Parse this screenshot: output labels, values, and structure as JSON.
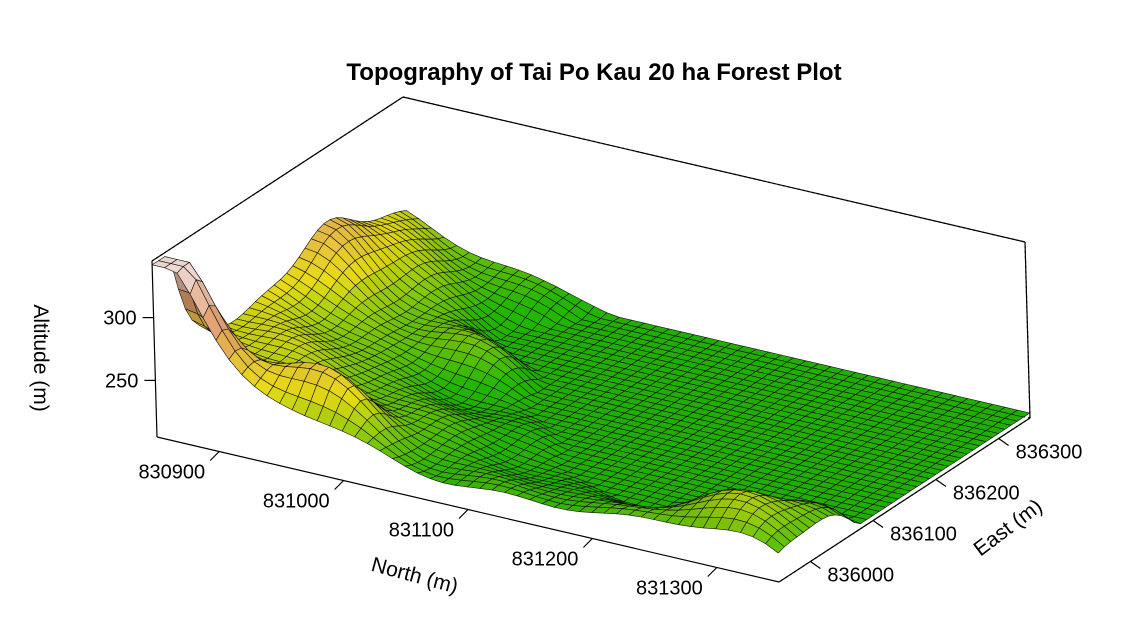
{
  "chart_data": {
    "type": "surface",
    "title": "Topography of Tai Po Kau 20 ha Forest Plot",
    "xlabel": "North (m)",
    "ylabel": "East (m)",
    "zlabel": "Altitude (m)",
    "x_ticks": [
      "830900",
      "831000",
      "831100",
      "831200",
      "831300"
    ],
    "y_ticks": [
      "836000",
      "836100",
      "836200",
      "836300"
    ],
    "z_ticks": [
      "250",
      "300"
    ],
    "xlim": [
      830850,
      831350
    ],
    "ylim": [
      835950,
      836350
    ],
    "zlim": [
      205,
      345
    ],
    "grid_resolution_m": 10,
    "colormap": [
      "#22b800",
      "#e8dc14",
      "#e9a26e",
      "#f5ded8"
    ],
    "mesh_color": "#111111"
  }
}
